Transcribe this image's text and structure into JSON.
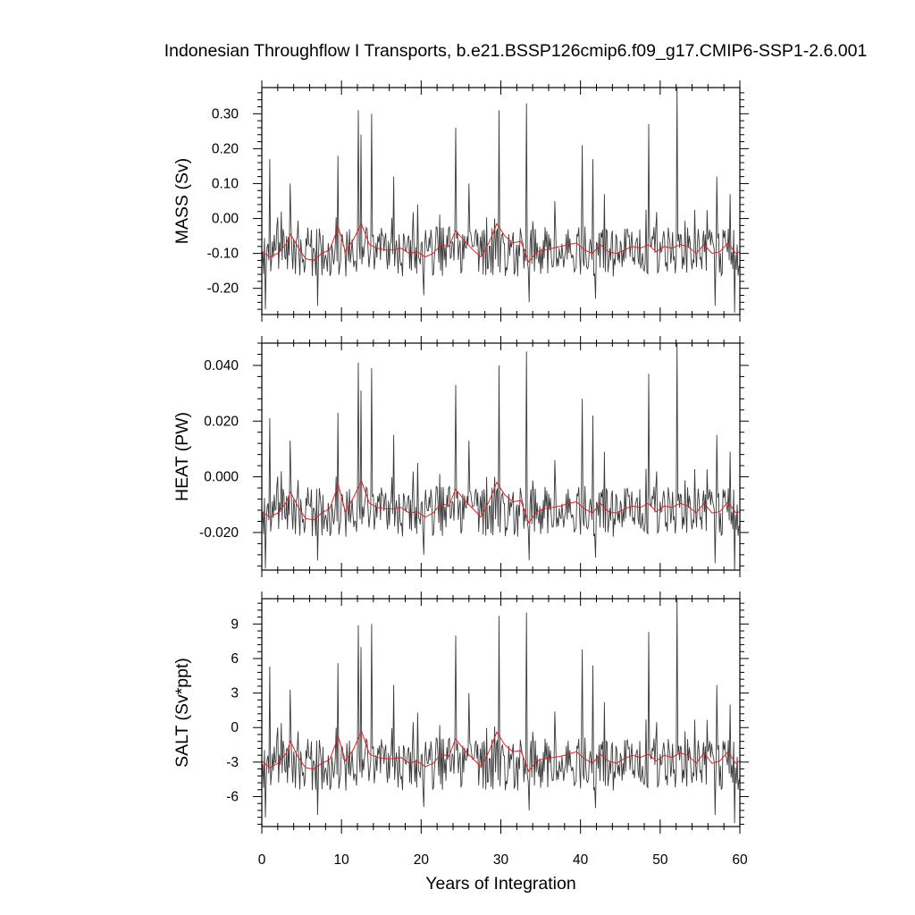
{
  "title": "Indonesian Throughflow I Transports, b.e21.BSSP126cmip6.f09_g17.CMIP6-SSP1-2.6.001",
  "colors": {
    "raw": "#3a3a3a",
    "smooth": "#e02020",
    "frame": "#000000"
  },
  "chart_data": [
    {
      "type": "line",
      "ylabel": "MASS (Sv)",
      "ylim": [
        -0.275,
        0.375
      ],
      "yticks": [
        0.3,
        0.2,
        0.1,
        0.0,
        -0.1,
        -0.2
      ],
      "ytick_labels": [
        "0.30",
        "0.20",
        "0.10",
        "0.00",
        "-0.10",
        "-0.20"
      ],
      "xlim": [
        0,
        60
      ],
      "show_xticklabels": false,
      "raw_series": {
        "seed": 1,
        "mean": -0.095,
        "amp": 0.075,
        "spike_scale": 0.07,
        "spikes": [
          [
            1.0,
            0.17
          ],
          [
            2.4,
            0.02
          ],
          [
            3.6,
            0.1
          ],
          [
            9.6,
            0.18
          ],
          [
            12.1,
            0.31
          ],
          [
            12.4,
            0.24
          ],
          [
            13.8,
            0.3
          ],
          [
            16.5,
            0.12
          ],
          [
            19.5,
            0.04
          ],
          [
            24.3,
            0.26
          ],
          [
            26.0,
            0.1
          ],
          [
            29.2,
            0.0
          ],
          [
            29.8,
            0.31
          ],
          [
            33.2,
            0.33
          ],
          [
            36.8,
            0.05
          ],
          [
            40.2,
            0.21
          ],
          [
            41.5,
            0.17
          ],
          [
            43.0,
            0.07
          ],
          [
            48.5,
            0.27
          ],
          [
            52.1,
            0.38
          ],
          [
            57.1,
            0.12
          ],
          [
            58.8,
            0.07
          ]
        ],
        "dips": [
          [
            0.4,
            -0.26
          ],
          [
            7.0,
            -0.25
          ],
          [
            20.3,
            -0.22
          ],
          [
            33.5,
            -0.24
          ],
          [
            41.9,
            -0.23
          ],
          [
            56.9,
            -0.25
          ],
          [
            59.3,
            -0.27
          ]
        ]
      },
      "smooth_series": {
        "x": [
          0,
          1,
          2,
          3,
          3.6,
          4.5,
          5.5,
          6.5,
          7.5,
          8.5,
          9.6,
          10.5,
          11.5,
          12.5,
          13.5,
          14.5,
          15.5,
          16.5,
          17.5,
          18.5,
          19.5,
          20.5,
          21.5,
          22.5,
          23.5,
          24.3,
          25.5,
          26.5,
          27.5,
          28.5,
          29.5,
          30.5,
          31.5,
          32.5,
          33.5,
          34.5,
          35.5,
          36.5,
          37.5,
          38.5,
          39.5,
          40.5,
          41.5,
          42.5,
          43.5,
          44.5,
          45.5,
          46.5,
          47.5,
          48.5,
          49.5,
          50.5,
          51.5,
          52.5,
          53.5,
          54.5,
          55.5,
          56.5,
          57.5,
          58.5,
          59.5,
          60
        ],
        "y": [
          -0.095,
          -0.11,
          -0.1,
          -0.075,
          -0.045,
          -0.08,
          -0.115,
          -0.12,
          -0.1,
          -0.09,
          -0.025,
          -0.095,
          -0.06,
          -0.015,
          -0.075,
          -0.085,
          -0.09,
          -0.09,
          -0.085,
          -0.1,
          -0.095,
          -0.11,
          -0.1,
          -0.075,
          -0.08,
          -0.035,
          -0.065,
          -0.09,
          -0.11,
          -0.07,
          -0.015,
          -0.05,
          -0.07,
          -0.065,
          -0.125,
          -0.095,
          -0.09,
          -0.085,
          -0.08,
          -0.075,
          -0.07,
          -0.09,
          -0.1,
          -0.075,
          -0.095,
          -0.1,
          -0.09,
          -0.08,
          -0.085,
          -0.075,
          -0.095,
          -0.08,
          -0.085,
          -0.075,
          -0.08,
          -0.1,
          -0.075,
          -0.1,
          -0.095,
          -0.07,
          -0.1,
          -0.095
        ]
      }
    },
    {
      "type": "line",
      "ylabel": "HEAT (PW)",
      "ylim": [
        -0.0335,
        0.048
      ],
      "yticks": [
        0.04,
        0.02,
        0.0,
        -0.02
      ],
      "ytick_labels": [
        "0.040",
        "0.020",
        "0.000",
        "-0.020"
      ],
      "xlim": [
        0,
        60
      ],
      "show_xticklabels": false,
      "raw_series": {
        "seed": 1,
        "mean": -0.0125,
        "amp": 0.0095,
        "spike_scale": 0.009,
        "spikes": [
          [
            1.0,
            0.021
          ],
          [
            2.4,
            0.002
          ],
          [
            3.6,
            0.013
          ],
          [
            9.6,
            0.023
          ],
          [
            12.1,
            0.041
          ],
          [
            12.4,
            0.031
          ],
          [
            13.8,
            0.039
          ],
          [
            16.5,
            0.015
          ],
          [
            19.5,
            0.005
          ],
          [
            24.3,
            0.033
          ],
          [
            26.0,
            0.013
          ],
          [
            29.2,
            0.0
          ],
          [
            29.8,
            0.04
          ],
          [
            33.2,
            0.045
          ],
          [
            36.8,
            0.006
          ],
          [
            40.2,
            0.028
          ],
          [
            41.5,
            0.022
          ],
          [
            43.0,
            0.009
          ],
          [
            48.5,
            0.037
          ],
          [
            52.1,
            0.048
          ],
          [
            57.1,
            0.015
          ],
          [
            58.8,
            0.009
          ]
        ],
        "dips": [
          [
            0.4,
            -0.033
          ],
          [
            7.0,
            -0.03
          ],
          [
            20.3,
            -0.028
          ],
          [
            33.5,
            -0.03
          ],
          [
            41.9,
            -0.029
          ],
          [
            56.9,
            -0.031
          ],
          [
            59.3,
            -0.034
          ]
        ]
      },
      "smooth_series": {
        "x": [
          0,
          1,
          2,
          3,
          3.6,
          4.5,
          5.5,
          6.5,
          7.5,
          8.5,
          9.6,
          10.5,
          11.5,
          12.5,
          13.5,
          14.5,
          15.5,
          16.5,
          17.5,
          18.5,
          19.5,
          20.5,
          21.5,
          22.5,
          23.5,
          24.3,
          25.5,
          26.5,
          27.5,
          28.5,
          29.5,
          30.5,
          31.5,
          32.5,
          33.5,
          34.5,
          35.5,
          36.5,
          37.5,
          38.5,
          39.5,
          40.5,
          41.5,
          42.5,
          43.5,
          44.5,
          45.5,
          46.5,
          47.5,
          48.5,
          49.5,
          50.5,
          51.5,
          52.5,
          53.5,
          54.5,
          55.5,
          56.5,
          57.5,
          58.5,
          59.5,
          60
        ],
        "y": [
          -0.0125,
          -0.0145,
          -0.013,
          -0.0095,
          -0.0055,
          -0.0105,
          -0.015,
          -0.0155,
          -0.013,
          -0.0115,
          -0.003,
          -0.0125,
          -0.0075,
          -0.0015,
          -0.0095,
          -0.011,
          -0.0115,
          -0.0115,
          -0.011,
          -0.013,
          -0.0125,
          -0.0145,
          -0.013,
          -0.0095,
          -0.0105,
          -0.0045,
          -0.0085,
          -0.0115,
          -0.0145,
          -0.009,
          -0.002,
          -0.0065,
          -0.009,
          -0.0085,
          -0.0165,
          -0.0125,
          -0.0115,
          -0.011,
          -0.0105,
          -0.0095,
          -0.009,
          -0.0115,
          -0.013,
          -0.0095,
          -0.0125,
          -0.013,
          -0.0115,
          -0.0105,
          -0.011,
          -0.0095,
          -0.0125,
          -0.0105,
          -0.011,
          -0.0095,
          -0.0105,
          -0.013,
          -0.0095,
          -0.013,
          -0.0125,
          -0.009,
          -0.013,
          -0.0125
        ]
      }
    },
    {
      "type": "line",
      "ylabel": "SALT (Sv*ppt)",
      "ylim": [
        -8.6,
        11.2
      ],
      "yticks": [
        9,
        6,
        3,
        0,
        -3,
        -6
      ],
      "ytick_labels": [
        "9",
        "6",
        "3",
        "0",
        "-3",
        "-6"
      ],
      "xlim": [
        0,
        60
      ],
      "xticks": [
        0,
        10,
        20,
        30,
        40,
        50,
        60
      ],
      "xtick_labels": [
        "0",
        "10",
        "20",
        "30",
        "40",
        "50",
        "60"
      ],
      "xlabel": "Years of Integration",
      "show_xticklabels": true,
      "raw_series": {
        "seed": 1,
        "mean": -3.2,
        "amp": 2.4,
        "spike_scale": 2.3,
        "spikes": [
          [
            1.0,
            5.3
          ],
          [
            2.4,
            0.4
          ],
          [
            3.6,
            3.3
          ],
          [
            9.6,
            5.6
          ],
          [
            12.1,
            8.9
          ],
          [
            12.4,
            7.0
          ],
          [
            13.8,
            9.0
          ],
          [
            16.5,
            3.7
          ],
          [
            19.5,
            1.3
          ],
          [
            24.3,
            8.0
          ],
          [
            26.0,
            3.0
          ],
          [
            29.2,
            0.1
          ],
          [
            29.8,
            9.7
          ],
          [
            33.2,
            10.0
          ],
          [
            36.8,
            1.4
          ],
          [
            40.2,
            6.8
          ],
          [
            41.5,
            5.4
          ],
          [
            43.0,
            2.2
          ],
          [
            48.5,
            8.3
          ],
          [
            52.1,
            11.2
          ],
          [
            57.1,
            3.7
          ],
          [
            58.8,
            2.0
          ]
        ],
        "dips": [
          [
            0.4,
            -7.8
          ],
          [
            7.0,
            -7.6
          ],
          [
            20.3,
            -6.9
          ],
          [
            33.5,
            -7.2
          ],
          [
            41.9,
            -7.0
          ],
          [
            56.9,
            -7.6
          ],
          [
            59.3,
            -8.3
          ]
        ]
      },
      "smooth_series": {
        "x": [
          0,
          1,
          2,
          3,
          3.6,
          4.5,
          5.5,
          6.5,
          7.5,
          8.5,
          9.6,
          10.5,
          11.5,
          12.5,
          13.5,
          14.5,
          15.5,
          16.5,
          17.5,
          18.5,
          19.5,
          20.5,
          21.5,
          22.5,
          23.5,
          24.3,
          25.5,
          26.5,
          27.5,
          28.5,
          29.5,
          30.5,
          31.5,
          32.5,
          33.5,
          34.5,
          35.5,
          36.5,
          37.5,
          38.5,
          39.5,
          40.5,
          41.5,
          42.5,
          43.5,
          44.5,
          45.5,
          46.5,
          47.5,
          48.5,
          49.5,
          50.5,
          51.5,
          52.5,
          53.5,
          54.5,
          55.5,
          56.5,
          57.5,
          58.5,
          59.5,
          60
        ],
        "y": [
          -2.9,
          -3.5,
          -3.1,
          -2.3,
          -1.2,
          -2.5,
          -3.5,
          -3.6,
          -3.1,
          -2.8,
          -0.8,
          -2.9,
          -1.9,
          -0.3,
          -2.3,
          -2.6,
          -2.7,
          -2.7,
          -2.6,
          -3.1,
          -2.9,
          -3.4,
          -3.1,
          -2.3,
          -2.5,
          -1.0,
          -2.0,
          -2.7,
          -3.4,
          -2.1,
          -0.4,
          -1.5,
          -2.1,
          -2.0,
          -3.8,
          -2.9,
          -2.7,
          -2.6,
          -2.5,
          -2.3,
          -2.1,
          -2.7,
          -3.1,
          -2.3,
          -2.9,
          -3.1,
          -2.7,
          -2.4,
          -2.6,
          -2.3,
          -2.9,
          -2.4,
          -2.6,
          -2.2,
          -2.4,
          -3.1,
          -2.2,
          -3.1,
          -2.9,
          -2.1,
          -3.1,
          -2.9
        ]
      }
    }
  ]
}
